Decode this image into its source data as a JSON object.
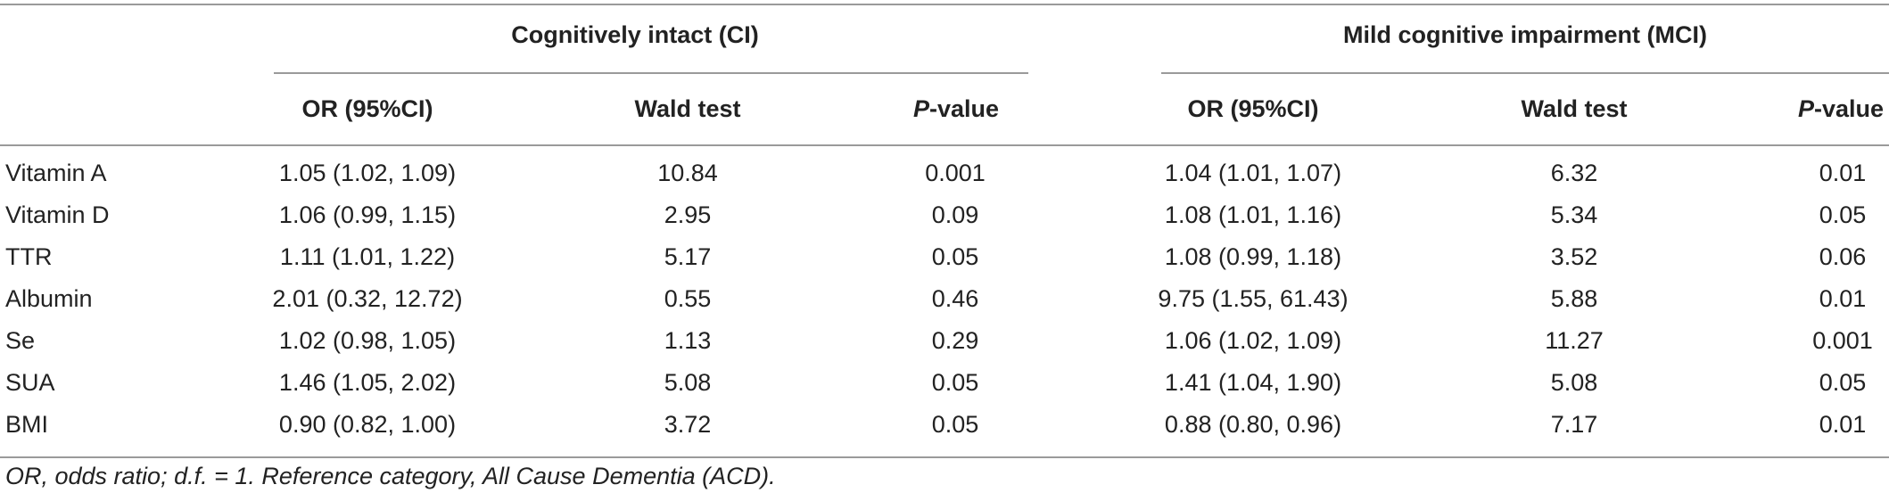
{
  "groups": [
    {
      "label": "Cognitively intact (CI)"
    },
    {
      "label": "Mild cognitive impairment (MCI)"
    }
  ],
  "columns": {
    "or": "OR (95%CI)",
    "wald": "Wald test",
    "p_prefix": "P",
    "p_suffix": "-value"
  },
  "rows": [
    {
      "label": "Vitamin A",
      "ci": [
        "1.05 (1.02, 1.09)",
        "10.84",
        "0.001"
      ],
      "mci": [
        "1.04 (1.01, 1.07)",
        "6.32",
        "0.01"
      ]
    },
    {
      "label": "Vitamin D",
      "ci": [
        "1.06 (0.99, 1.15)",
        "2.95",
        "0.09"
      ],
      "mci": [
        "1.08 (1.01, 1.16)",
        "5.34",
        "0.05"
      ]
    },
    {
      "label": "TTR",
      "ci": [
        "1.11 (1.01, 1.22)",
        "5.17",
        "0.05"
      ],
      "mci": [
        "1.08 (0.99, 1.18)",
        "3.52",
        "0.06"
      ]
    },
    {
      "label": "Albumin",
      "ci": [
        "2.01 (0.32, 12.72)",
        "0.55",
        "0.46"
      ],
      "mci": [
        "9.75 (1.55, 61.43)",
        "5.88",
        "0.01"
      ]
    },
    {
      "label": "Se",
      "ci": [
        "1.02 (0.98, 1.05)",
        "1.13",
        "0.29"
      ],
      "mci": [
        "1.06 (1.02, 1.09)",
        "11.27",
        "0.001"
      ]
    },
    {
      "label": "SUA",
      "ci": [
        "1.46 (1.05, 2.02)",
        "5.08",
        "0.05"
      ],
      "mci": [
        "1.41 (1.04, 1.90)",
        "5.08",
        "0.05"
      ]
    },
    {
      "label": "BMI",
      "ci": [
        "0.90 (0.82, 1.00)",
        "3.72",
        "0.05"
      ],
      "mci": [
        "0.88 (0.80, 0.96)",
        "7.17",
        "0.01"
      ]
    }
  ],
  "footnote": "OR, odds ratio; d.f. = 1. Reference category, All Cause Dementia (ACD)."
}
